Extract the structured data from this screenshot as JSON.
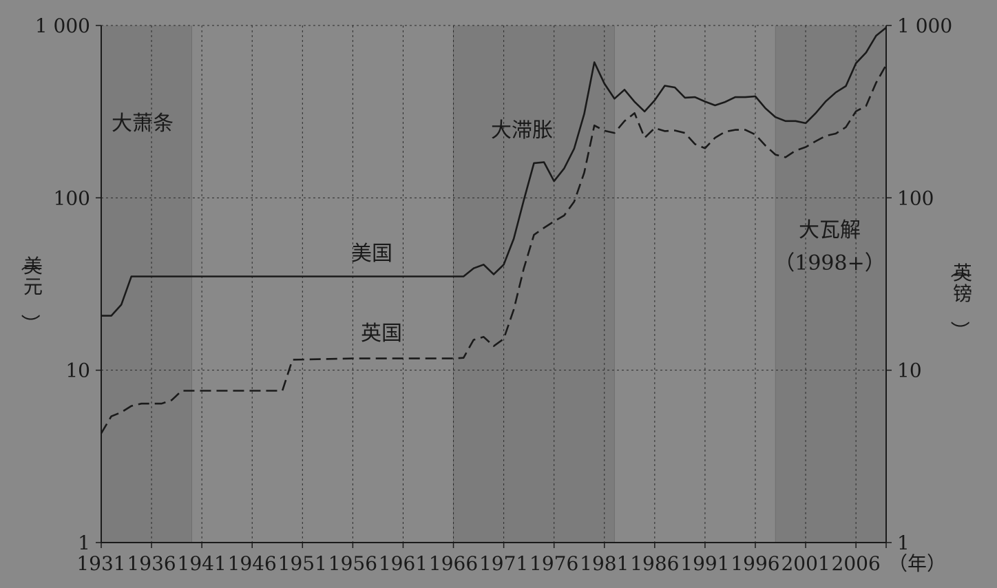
{
  "chart_data": {
    "type": "line",
    "title": "",
    "xlabel": "（年）",
    "ylabel_left": "（美元）",
    "ylabel_right": "（英镑）",
    "yscale": "log",
    "ylim": [
      1,
      1000
    ],
    "xlim": [
      1931,
      2009
    ],
    "x_ticks": [
      "1931",
      "1936",
      "1941",
      "1946",
      "1951",
      "1956",
      "1961",
      "1966",
      "1971",
      "1976",
      "1981",
      "1986",
      "1991",
      "1996",
      "2001",
      "2006"
    ],
    "y_ticks_left": [
      "1 000",
      "100",
      "10",
      "1"
    ],
    "y_ticks_right": [
      "1 000",
      "100",
      "10",
      "1"
    ],
    "y_tick_values": [
      1000,
      100,
      10,
      1
    ],
    "grid": true,
    "shaded_periods": [
      {
        "label": "大萧条",
        "start": 1931,
        "end": 1940
      },
      {
        "label": "大滞胀",
        "start": 1966,
        "end": 1982
      },
      {
        "label": "大瓦解",
        "sublabel": "（1998+）",
        "start": 1998,
        "end": 2009
      }
    ],
    "series": [
      {
        "name": "美国",
        "style": "solid",
        "points": [
          [
            1931,
            20.7
          ],
          [
            1932,
            20.7
          ],
          [
            1933,
            24
          ],
          [
            1934,
            35
          ],
          [
            1935,
            35
          ],
          [
            1966,
            35
          ],
          [
            1967,
            35
          ],
          [
            1968,
            39
          ],
          [
            1969,
            41
          ],
          [
            1970,
            36
          ],
          [
            1971,
            41
          ],
          [
            1972,
            58
          ],
          [
            1973,
            97
          ],
          [
            1974,
            159
          ],
          [
            1975,
            161
          ],
          [
            1976,
            125
          ],
          [
            1977,
            148
          ],
          [
            1978,
            193
          ],
          [
            1979,
            307
          ],
          [
            1980,
            612
          ],
          [
            1981,
            460
          ],
          [
            1982,
            376
          ],
          [
            1983,
            424
          ],
          [
            1984,
            361
          ],
          [
            1985,
            317
          ],
          [
            1986,
            368
          ],
          [
            1987,
            447
          ],
          [
            1988,
            437
          ],
          [
            1989,
            381
          ],
          [
            1990,
            384
          ],
          [
            1991,
            362
          ],
          [
            1992,
            344
          ],
          [
            1993,
            360
          ],
          [
            1994,
            384
          ],
          [
            1995,
            384
          ],
          [
            1996,
            388
          ],
          [
            1997,
            331
          ],
          [
            1998,
            294
          ],
          [
            1999,
            279
          ],
          [
            2000,
            279
          ],
          [
            2001,
            271
          ],
          [
            2002,
            310
          ],
          [
            2003,
            363
          ],
          [
            2004,
            409
          ],
          [
            2005,
            445
          ],
          [
            2006,
            604
          ],
          [
            2007,
            696
          ],
          [
            2008,
            872
          ],
          [
            2009,
            972
          ]
        ]
      },
      {
        "name": "英国",
        "style": "dashed",
        "points": [
          [
            1931,
            4.3
          ],
          [
            1932,
            5.4
          ],
          [
            1933,
            5.7
          ],
          [
            1934,
            6.2
          ],
          [
            1935,
            6.4
          ],
          [
            1936,
            6.4
          ],
          [
            1937,
            6.4
          ],
          [
            1938,
            6.7
          ],
          [
            1939,
            7.6
          ],
          [
            1940,
            7.6
          ],
          [
            1949,
            7.6
          ],
          [
            1950,
            11.5
          ],
          [
            1956,
            11.7
          ],
          [
            1961,
            11.7
          ],
          [
            1966,
            11.7
          ],
          [
            1967,
            11.8
          ],
          [
            1968,
            15
          ],
          [
            1969,
            15.6
          ],
          [
            1970,
            13.8
          ],
          [
            1971,
            15.2
          ],
          [
            1972,
            22.5
          ],
          [
            1973,
            39
          ],
          [
            1974,
            61
          ],
          [
            1975,
            67
          ],
          [
            1976,
            73
          ],
          [
            1977,
            79
          ],
          [
            1978,
            95
          ],
          [
            1979,
            140
          ],
          [
            1980,
            263
          ],
          [
            1981,
            245
          ],
          [
            1982,
            238
          ],
          [
            1983,
            279
          ],
          [
            1984,
            310
          ],
          [
            1985,
            223
          ],
          [
            1986,
            254
          ],
          [
            1987,
            244
          ],
          [
            1988,
            246
          ],
          [
            1989,
            238
          ],
          [
            1990,
            205
          ],
          [
            1991,
            194
          ],
          [
            1992,
            223
          ],
          [
            1993,
            242
          ],
          [
            1994,
            248
          ],
          [
            1995,
            248
          ],
          [
            1996,
            233
          ],
          [
            1997,
            201
          ],
          [
            1998,
            178
          ],
          [
            1999,
            172
          ],
          [
            2000,
            188
          ],
          [
            2001,
            197
          ],
          [
            2002,
            213
          ],
          [
            2003,
            229
          ],
          [
            2004,
            236
          ],
          [
            2005,
            257
          ],
          [
            2006,
            318
          ],
          [
            2007,
            341
          ],
          [
            2008,
            465
          ],
          [
            2009,
            590
          ]
        ]
      }
    ]
  }
}
